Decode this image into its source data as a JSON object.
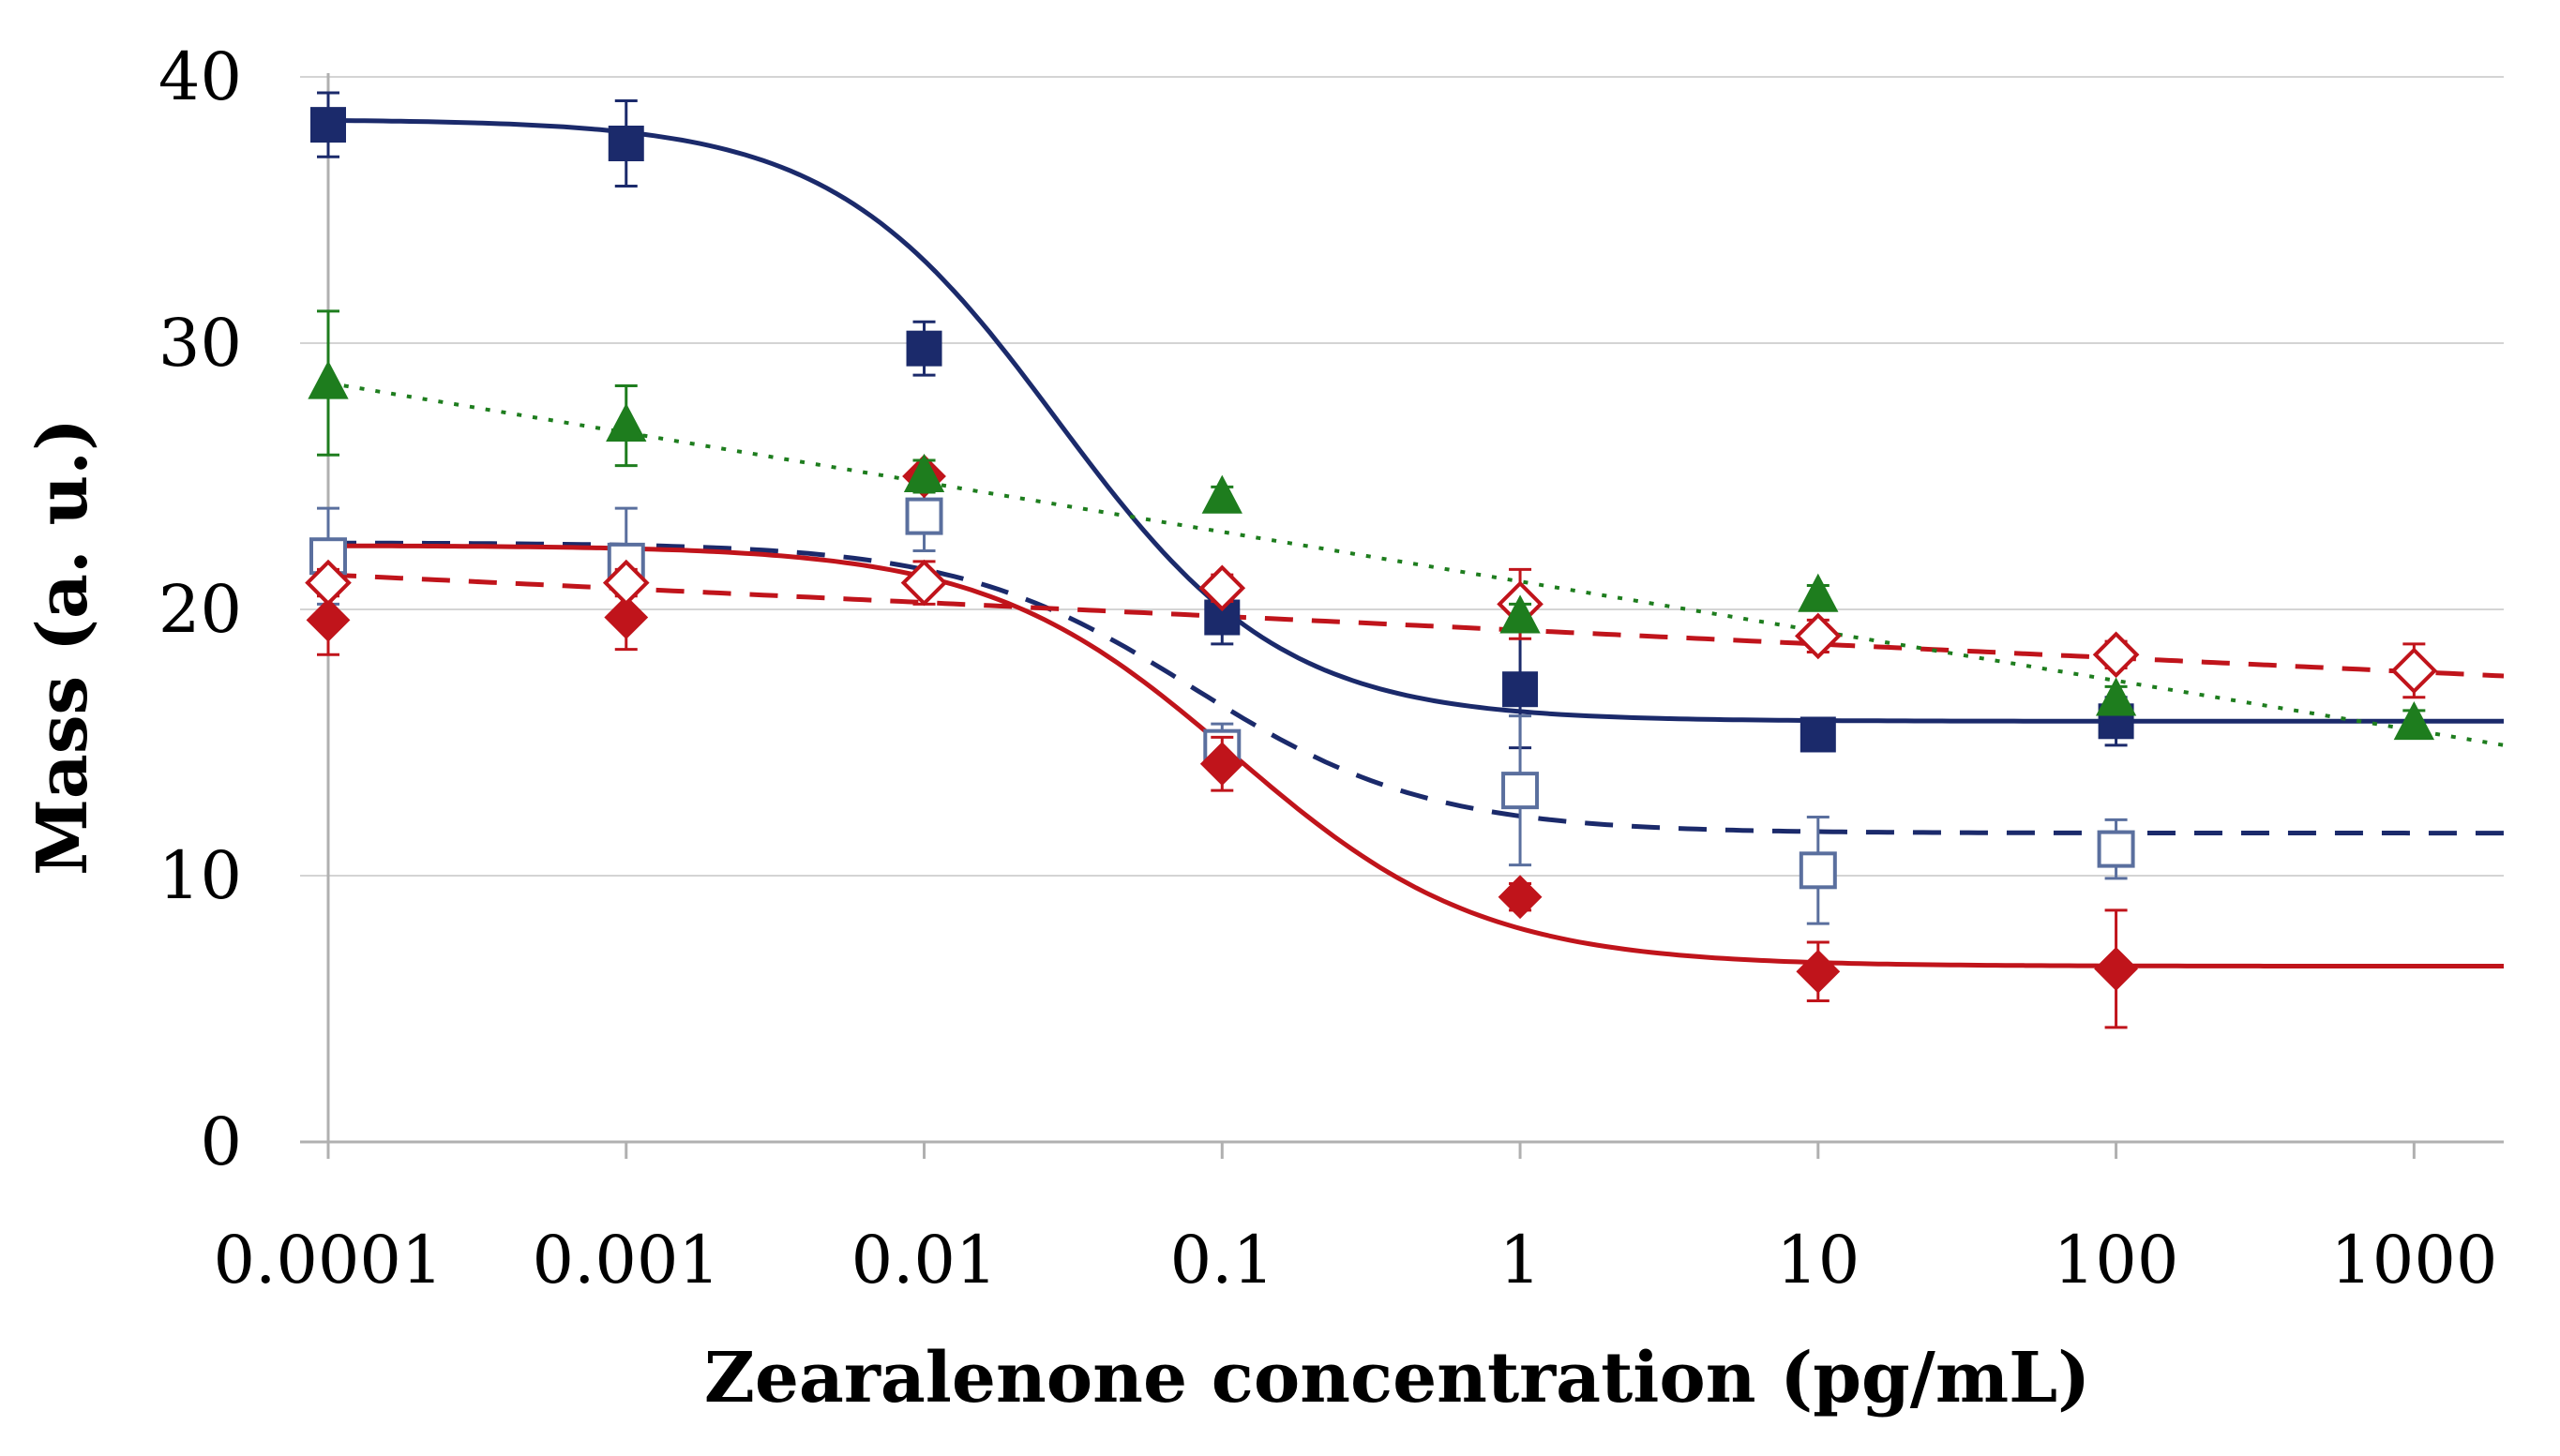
{
  "chart_data": {
    "type": "scatter",
    "title": "",
    "xlabel": "Zearalenone concentration  (pg/mL)",
    "ylabel": "Mass  (a. u.)",
    "xscale": "log",
    "xlim": [
      0.0001,
      2000
    ],
    "ylim": [
      0,
      40
    ],
    "grid": "horizontal",
    "legend": "none",
    "x_tick_labels": [
      "0.0001",
      "0.001",
      "0.01",
      "0.1",
      "1",
      "10",
      "100",
      "1000"
    ],
    "y_tick_labels": [
      "0",
      "10",
      "20",
      "30",
      "40"
    ],
    "y_ticks": [
      0,
      10,
      20,
      30,
      40
    ],
    "x_ticks": [
      0.0001,
      0.001,
      0.01,
      0.1,
      1,
      10,
      100,
      1000
    ],
    "series": [
      {
        "name": "filled squares",
        "marker": "square",
        "filled": true,
        "color": "#1b2a6b",
        "line": "solid",
        "x": [
          0.0001,
          0.001,
          0.01,
          0.1,
          1,
          10,
          100
        ],
        "y": [
          38.2,
          37.5,
          29.8,
          19.7,
          17.0,
          15.3,
          15.8
        ],
        "err": [
          1.2,
          1.6,
          1.0,
          1.0,
          2.2,
          0.5,
          0.9
        ],
        "fit": {
          "top": 38.4,
          "bottom": 15.8,
          "ec50": 0.028,
          "hill": 1.15
        }
      },
      {
        "name": "open squares",
        "marker": "square",
        "filled": false,
        "color": "#5a6f9e",
        "line": "dashed",
        "line_color": "#1b2a6b",
        "x": [
          0.0001,
          0.001,
          0.01,
          0.1,
          1,
          10,
          100
        ],
        "y": [
          22.0,
          21.8,
          23.5,
          14.8,
          13.2,
          10.2,
          11.0
        ],
        "err": [
          1.8,
          2.0,
          1.3,
          0.9,
          2.8,
          2.0,
          1.1
        ],
        "fit": {
          "top": 22.5,
          "bottom": 11.6,
          "ec50": 0.08,
          "hill": 1.1
        }
      },
      {
        "name": "filled diamonds",
        "marker": "diamond",
        "filled": true,
        "color": "#c0141b",
        "line": "solid",
        "x": [
          0.0001,
          0.001,
          0.01,
          0.1,
          1,
          10,
          100
        ],
        "y": [
          19.6,
          19.7,
          25.0,
          14.2,
          9.2,
          6.4,
          6.5
        ],
        "err": [
          1.3,
          1.2,
          0.6,
          1.0,
          0.5,
          1.1,
          2.2
        ],
        "fit": {
          "top": 22.4,
          "bottom": 6.6,
          "ec50": 0.11,
          "hill": 1.05
        }
      },
      {
        "name": "open diamonds",
        "marker": "diamond",
        "filled": false,
        "color": "#c0141b",
        "line": "dashed",
        "x": [
          0.0001,
          0.001,
          0.01,
          0.1,
          1,
          10,
          100,
          1000
        ],
        "y": [
          21.0,
          21.0,
          21.0,
          20.8,
          20.2,
          19.0,
          18.3,
          17.7
        ],
        "err": [
          0.5,
          0.5,
          0.8,
          0.5,
          1.3,
          0.6,
          0.5,
          1.0
        ],
        "trend": {
          "type": "linear_log",
          "y_at_start": 21.3,
          "y_at_end": 17.5
        }
      },
      {
        "name": "filled triangles",
        "marker": "triangle",
        "filled": true,
        "color": "#1e7d1e",
        "line": "dotted",
        "x": [
          0.0001,
          0.001,
          0.01,
          0.1,
          1,
          10,
          100,
          1000
        ],
        "y": [
          28.5,
          26.9,
          25.0,
          24.2,
          19.7,
          20.5,
          16.6,
          15.7
        ],
        "err": [
          2.7,
          1.5,
          0.6,
          0.4,
          0.5,
          0.4,
          0.5,
          0.5
        ],
        "trend": {
          "type": "linear_log",
          "y_at_start": 28.5,
          "y_at_end": 14.9
        }
      }
    ]
  }
}
